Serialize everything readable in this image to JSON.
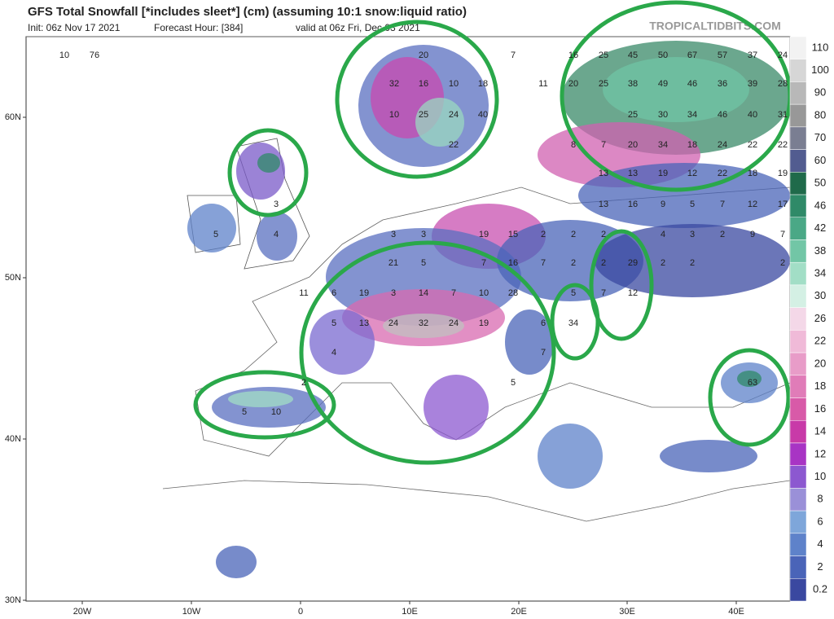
{
  "header": {
    "title": "GFS Total Snowfall [*includes sleet*] (cm) (assuming 10:1 snow:liquid ratio)",
    "init": "Init: 06z Nov 17 2021",
    "forecast_hour": "Forecast Hour: [384]",
    "valid": "valid at 06z Fri, Dec 03 2021",
    "watermark": "TROPICALTIDBITS.COM"
  },
  "axes": {
    "lon_labels": [
      "20W",
      "10W",
      "0",
      "10E",
      "20E",
      "30E",
      "40E"
    ],
    "lat_labels": [
      "60N",
      "50N",
      "40N",
      "30N"
    ]
  },
  "colorbar": {
    "labels": [
      "110",
      "100",
      "90",
      "80",
      "70",
      "60",
      "50",
      "46",
      "42",
      "38",
      "34",
      "30",
      "26",
      "22",
      "20",
      "18",
      "16",
      "14",
      "12",
      "10",
      "8",
      "6",
      "4",
      "2",
      "0.2"
    ],
    "colors": [
      "#f2f2f2",
      "#d6d6d6",
      "#b8b8b8",
      "#989898",
      "#7a7e92",
      "#525c90",
      "#1f6a4a",
      "#2f8a68",
      "#4aa886",
      "#72c6a6",
      "#a2dec6",
      "#d4f0e4",
      "#f4d8e8",
      "#f0bad8",
      "#e89cc8",
      "#e07cb8",
      "#d85aa8",
      "#c83aa8",
      "#a834c4",
      "#8c58d0",
      "#9a90d8",
      "#7ea6da",
      "#5e82ca",
      "#4a64b8",
      "#3a48a0"
    ]
  },
  "map_labels": [
    20,
    7,
    32,
    16,
    10,
    18,
    10,
    25,
    24,
    40,
    22,
    16,
    25,
    45,
    50,
    67,
    57,
    37,
    24,
    11,
    20,
    25,
    38,
    49,
    46,
    36,
    39,
    28,
    25,
    30,
    34,
    46,
    40,
    31,
    8,
    7,
    20,
    34,
    18,
    24,
    22,
    22,
    13,
    13,
    19,
    12,
    22,
    18,
    19,
    13,
    16,
    9,
    5,
    7,
    12,
    17,
    76,
    10,
    3,
    3,
    19,
    15,
    2,
    2,
    2,
    4,
    3,
    2,
    9,
    7,
    21,
    5,
    7,
    16,
    7,
    2,
    2,
    29,
    2,
    2,
    2,
    19,
    3,
    14,
    7,
    10,
    28,
    5,
    7,
    12,
    5,
    13,
    24,
    32,
    24,
    19,
    6,
    34,
    4,
    7,
    63,
    5,
    2,
    3,
    4,
    5,
    6,
    11,
    5,
    10
  ]
}
